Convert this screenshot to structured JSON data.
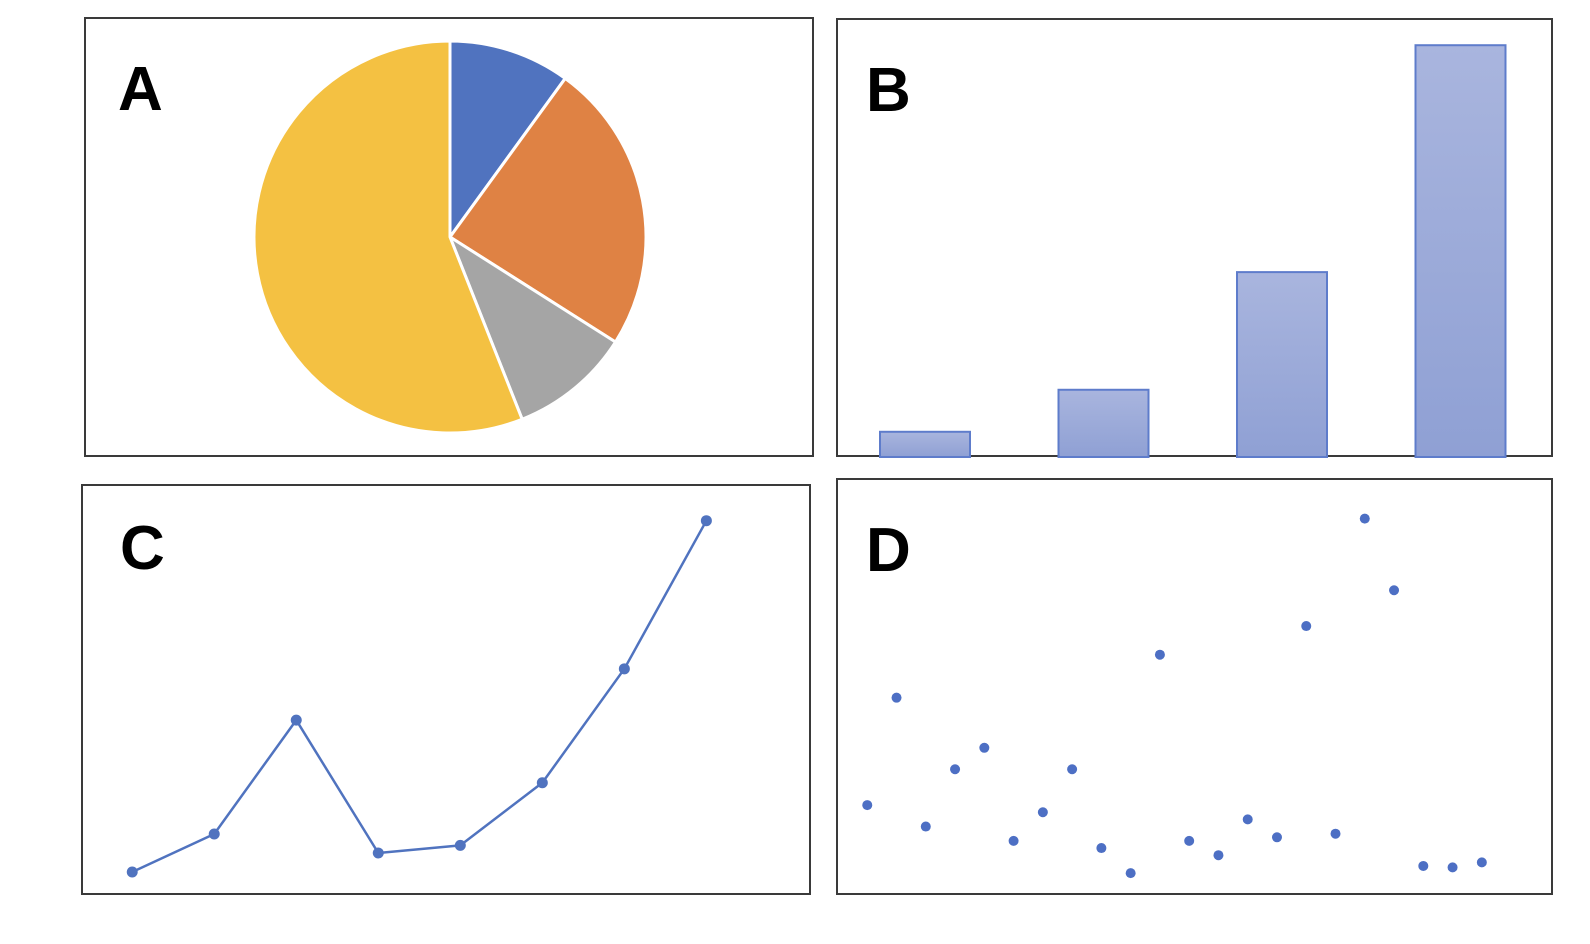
{
  "panels": {
    "a": {
      "label": "A"
    },
    "b": {
      "label": "B"
    },
    "c": {
      "label": "C"
    },
    "d": {
      "label": "D"
    }
  },
  "chart_data": [
    {
      "panel": "A",
      "type": "pie",
      "values": [
        10,
        24,
        10,
        56
      ],
      "colors": [
        "#5073BF",
        "#DF8244",
        "#A5A5A5",
        "#F4C142"
      ],
      "start_angle_deg": 0,
      "direction": "clockwise",
      "slice_border_color": "#ffffff"
    },
    {
      "panel": "B",
      "type": "bar",
      "categories": [
        "",
        "",
        "",
        ""
      ],
      "values": [
        1.5,
        4,
        11,
        24.5
      ],
      "ylim": [
        0,
        26
      ],
      "fill_top": "#A9B5DE",
      "fill_bottom": "#8FA0D4",
      "stroke": "#5E7CCB"
    },
    {
      "panel": "C",
      "type": "line",
      "x": [
        1,
        2,
        3,
        4,
        5,
        6,
        7,
        8
      ],
      "y": [
        1,
        3,
        9,
        2,
        2.4,
        5.7,
        11.7,
        19.5
      ],
      "xlim": [
        0.4,
        9.3
      ],
      "ylim": [
        0,
        20.8
      ],
      "color": "#5073BF"
    },
    {
      "panel": "D",
      "type": "scatter",
      "points": [
        [
          1,
          10
        ],
        [
          2,
          25
        ],
        [
          3,
          7
        ],
        [
          4,
          15
        ],
        [
          5,
          18
        ],
        [
          6,
          5
        ],
        [
          7,
          9
        ],
        [
          8,
          15
        ],
        [
          9,
          4
        ],
        [
          10,
          0.5
        ],
        [
          11,
          31
        ],
        [
          12,
          5
        ],
        [
          13,
          3
        ],
        [
          14,
          8
        ],
        [
          15,
          5.5
        ],
        [
          16,
          35
        ],
        [
          17,
          6
        ],
        [
          18,
          50
        ],
        [
          19,
          40
        ],
        [
          20,
          1.5
        ],
        [
          21,
          1.3
        ],
        [
          22,
          2
        ]
      ],
      "xlim": [
        0,
        24.5
      ],
      "ylim": [
        -2,
        54
      ],
      "color": "#4D6FC4"
    }
  ]
}
